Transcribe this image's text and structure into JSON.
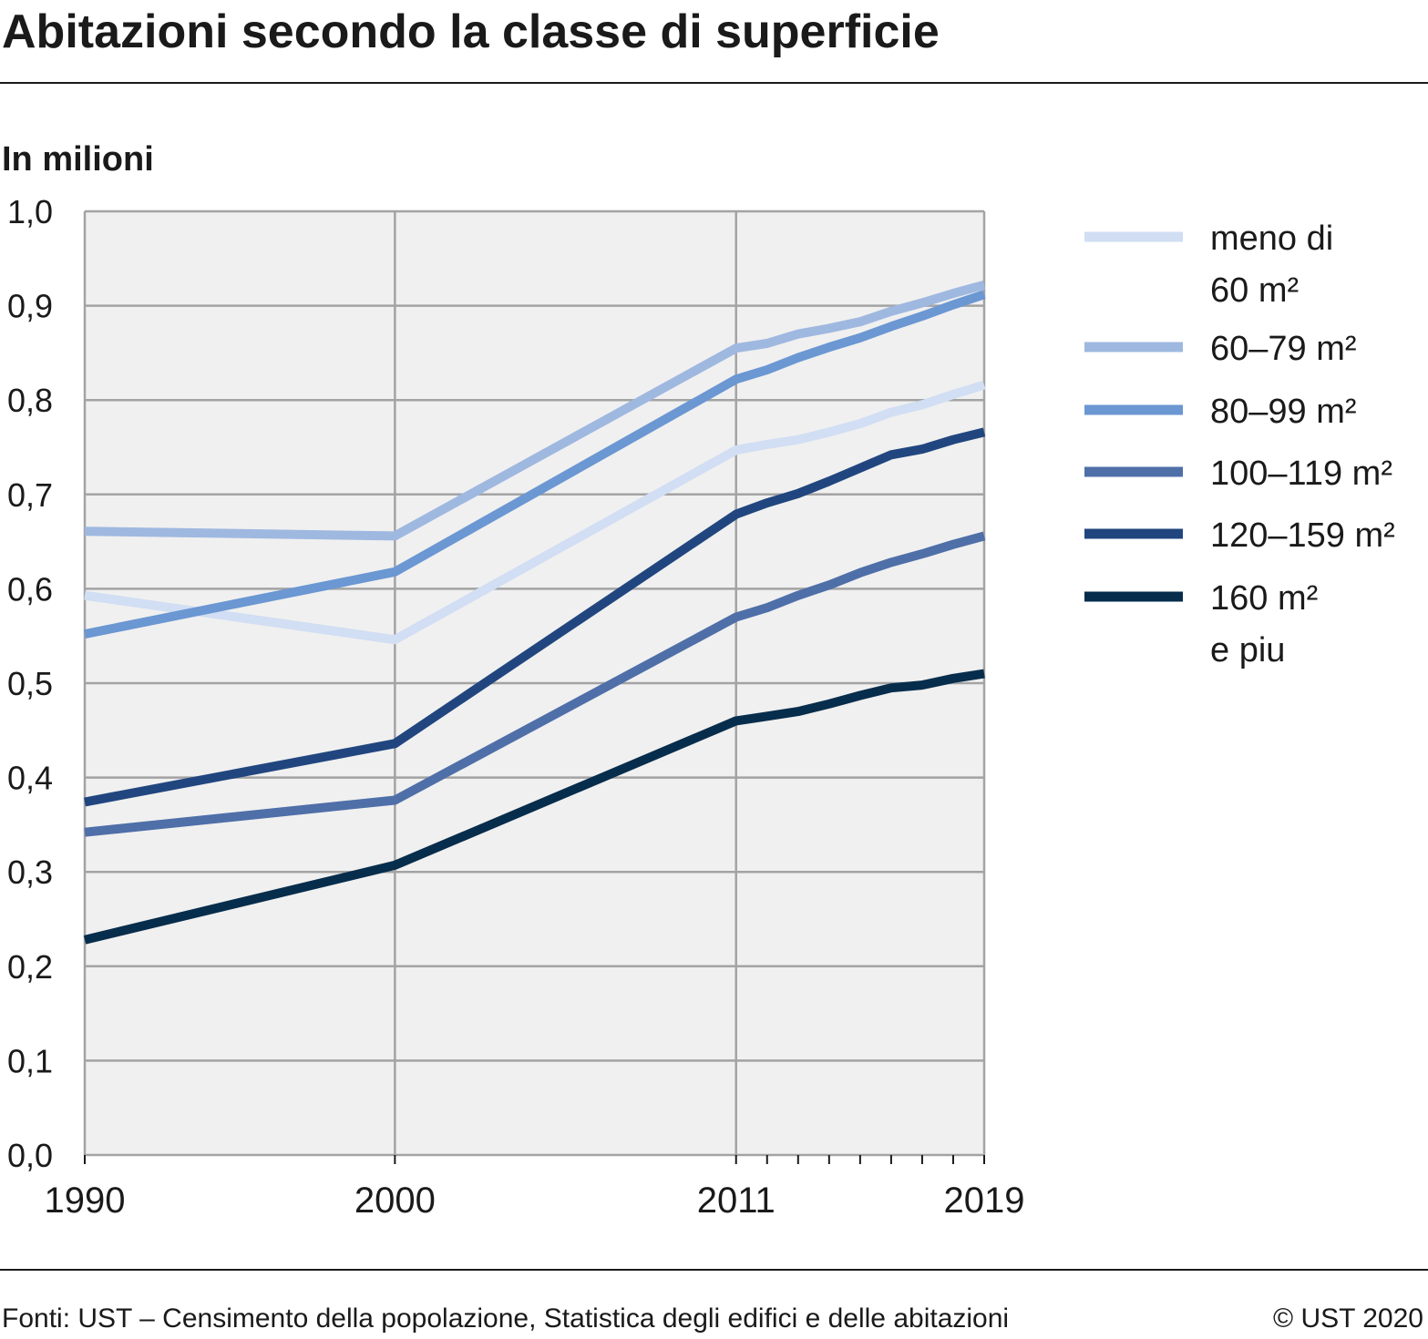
{
  "header": {
    "title": "Abitazioni secondo la classe di superficie"
  },
  "footer": {
    "source": "Fonti: UST – Censimento della popolazione, Statistica degli edifici e delle abitazioni",
    "copyright": "© UST 2020"
  },
  "chart_data": {
    "type": "line",
    "title": "Abitazioni secondo la classe di superficie",
    "unit_label": "In milioni",
    "xlabel": "",
    "ylabel": "In milioni",
    "ylim": [
      0,
      1.0
    ],
    "xlim": [
      1990,
      2019
    ],
    "grid": true,
    "legend_position": "right",
    "y_ticks": [
      "0,0",
      "0,1",
      "0,2",
      "0,3",
      "0,4",
      "0,5",
      "0,6",
      "0,7",
      "0,8",
      "0,9",
      "1,0"
    ],
    "x_tick_labels": [
      "1990",
      "2000",
      "2011",
      "2019"
    ],
    "x_minor_ticks": [
      2012,
      2013,
      2014,
      2015,
      2016,
      2017,
      2018
    ],
    "x": [
      1990,
      2000,
      2011,
      2012,
      2013,
      2014,
      2015,
      2016,
      2017,
      2018,
      2019
    ],
    "series": [
      {
        "name": [
          "meno di",
          "60 m²"
        ],
        "color": "#d1def3",
        "values": [
          0.593,
          0.546,
          0.747,
          0.753,
          0.758,
          0.766,
          0.775,
          0.787,
          0.795,
          0.806,
          0.816
        ]
      },
      {
        "name": [
          "60–79 m²"
        ],
        "color": "#9fb8e0",
        "values": [
          0.661,
          0.656,
          0.855,
          0.86,
          0.87,
          0.876,
          0.883,
          0.894,
          0.903,
          0.913,
          0.922
        ]
      },
      {
        "name": [
          "80–99 m²"
        ],
        "color": "#6b97d2",
        "values": [
          0.552,
          0.618,
          0.822,
          0.832,
          0.845,
          0.856,
          0.866,
          0.878,
          0.889,
          0.901,
          0.912
        ]
      },
      {
        "name": [
          "100–119 m²"
        ],
        "color": "#4f6fa8",
        "values": [
          0.342,
          0.376,
          0.57,
          0.58,
          0.593,
          0.604,
          0.617,
          0.628,
          0.637,
          0.647,
          0.656
        ]
      },
      {
        "name": [
          "120–159 m²"
        ],
        "color": "#21467f",
        "values": [
          0.374,
          0.436,
          0.679,
          0.691,
          0.701,
          0.714,
          0.728,
          0.742,
          0.748,
          0.758,
          0.766
        ]
      },
      {
        "name": [
          "160  m²",
          "e piu"
        ],
        "color": "#072d4c",
        "values": [
          0.228,
          0.307,
          0.46,
          0.465,
          0.47,
          0.478,
          0.487,
          0.495,
          0.498,
          0.505,
          0.51
        ]
      }
    ]
  }
}
